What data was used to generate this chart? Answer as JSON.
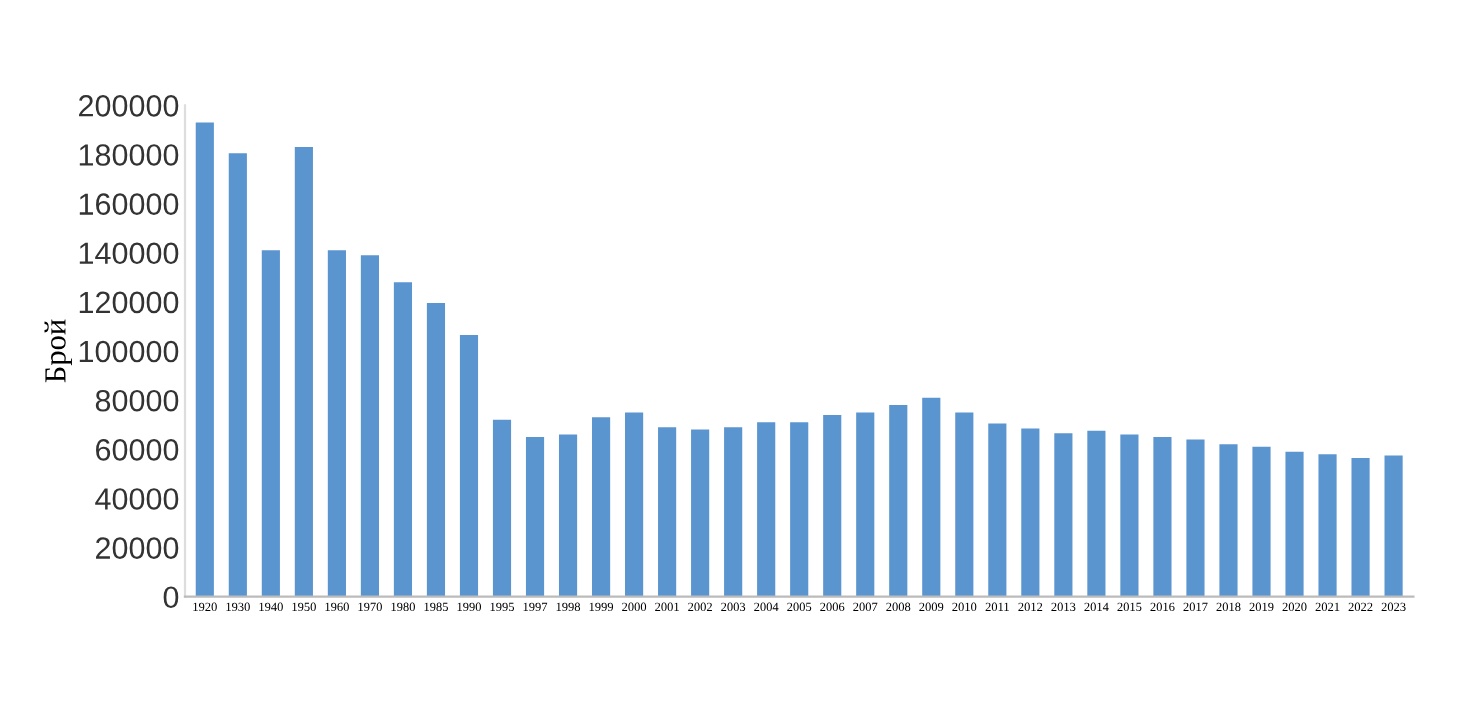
{
  "chart_data": {
    "type": "bar",
    "ylabel": "Брой",
    "categories": [
      "1920",
      "1930",
      "1940",
      "1950",
      "1960",
      "1970",
      "1980",
      "1985",
      "1990",
      "1995",
      "1997",
      "1998",
      "1999",
      "2000",
      "2001",
      "2002",
      "2003",
      "2004",
      "2005",
      "2006",
      "2007",
      "2008",
      "2009",
      "2010",
      "2011",
      "2012",
      "2013",
      "2014",
      "2015",
      "2016",
      "2017",
      "2018",
      "2019",
      "2020",
      "2021",
      "2022",
      "2023"
    ],
    "values": [
      193000,
      180500,
      141000,
      183000,
      141000,
      139000,
      128000,
      119500,
      106500,
      72000,
      65000,
      66000,
      73000,
      75000,
      69000,
      68000,
      69000,
      71000,
      71000,
      74000,
      75000,
      78000,
      81000,
      75000,
      70500,
      68500,
      66500,
      67500,
      66000,
      65000,
      64000,
      62000,
      61000,
      59000,
      58000,
      56500,
      57500
    ],
    "color": "#5b95cf",
    "ylim": [
      0,
      200000
    ],
    "yticks": [
      0,
      20000,
      40000,
      60000,
      80000,
      100000,
      120000,
      140000,
      160000,
      180000,
      200000
    ],
    "grid": false,
    "legend": false
  }
}
